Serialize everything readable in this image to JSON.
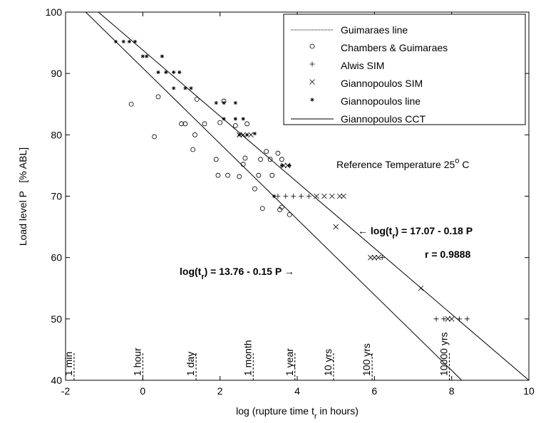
{
  "chart_data": {
    "type": "scatter",
    "xlabel": {
      "main": "log (rupture time t",
      "sub": "r",
      "tail": " in hours)"
    },
    "ylabel": "Load level P   [% ABL]",
    "xlim": [
      -2,
      10
    ],
    "xticks": [
      -2,
      0,
      2,
      4,
      6,
      8,
      10
    ],
    "ylim": [
      40,
      100
    ],
    "yticks": [
      40,
      50,
      60,
      70,
      80,
      90,
      100
    ],
    "legend_location": "upper right",
    "series": [
      {
        "name": "Guimaraes line",
        "marker": "line",
        "color": "#000000",
        "x": [
          -1.48,
          8.26
        ],
        "values": [
          100,
          40
        ]
      },
      {
        "name": "Chambers & Guimaraes",
        "marker": "circle",
        "color": "#000000",
        "x": [
          -0.3,
          0.3,
          0.4,
          1.0,
          1.1,
          1.3,
          1.35,
          1.4,
          1.6,
          1.9,
          1.95,
          2.0,
          2.1,
          2.2,
          2.4,
          2.5,
          2.6,
          2.65,
          2.7,
          2.9,
          3.0,
          3.05,
          3.1,
          3.2,
          3.3,
          3.35,
          3.5,
          3.6,
          3.55,
          3.6,
          3.8
        ],
        "values": [
          85,
          79.7,
          86.2,
          81.8,
          81.8,
          77.6,
          80,
          85.8,
          81.8,
          76,
          73.4,
          82,
          85.5,
          73.4,
          81.5,
          73.2,
          75.2,
          76.2,
          81.8,
          71.2,
          73.4,
          76,
          68,
          77.3,
          76,
          73.4,
          77,
          76,
          67.8,
          68.2,
          67
        ]
      },
      {
        "name": "Alwis SIM",
        "marker": "plus",
        "color": "#000000",
        "x": [
          3.5,
          3.7,
          3.9,
          4.1,
          4.3,
          6.2,
          7.6,
          7.8,
          8.2,
          8.4
        ],
        "values": [
          70,
          70,
          70,
          70,
          70,
          60,
          50,
          50,
          50,
          50
        ]
      },
      {
        "name": "Giannopoulos SIM",
        "marker": "x",
        "color": "#000000",
        "x": [
          2.5,
          2.6,
          2.8,
          3.65,
          3.75,
          4.5,
          4.7,
          4.9,
          5.1,
          5.2,
          5.0,
          5.9,
          6.0,
          6.1,
          7.2,
          7.9,
          8.0
        ],
        "values": [
          80,
          80,
          80,
          75,
          75,
          70,
          70,
          70,
          70,
          70,
          65,
          60,
          60,
          60,
          55,
          50,
          50
        ]
      },
      {
        "name": "Giannopoulos line",
        "marker": "star",
        "color": "#000000",
        "x": [
          -0.7,
          -0.5,
          -0.35,
          -0.2,
          0.0,
          0.1,
          0.5,
          0.4,
          0.6,
          0.8,
          0.95,
          0.8,
          1.1,
          1.25,
          1.9,
          2.1,
          2.4,
          2.1,
          2.4,
          2.6,
          2.5,
          2.7,
          2.9,
          3.6,
          3.8,
          3.4
        ],
        "values": [
          95.2,
          95.2,
          95.2,
          95.2,
          92.8,
          92.8,
          92.8,
          90.2,
          90.2,
          90.2,
          90.2,
          87.6,
          87.6,
          87.6,
          85.2,
          85.2,
          85.2,
          82.6,
          82.6,
          82.6,
          80,
          80,
          80.2,
          75,
          75,
          70
        ]
      },
      {
        "name": "Giannopoulos CCT",
        "marker": "line",
        "color": "#000000",
        "x": [
          -1.15,
          10
        ],
        "values": [
          100,
          40
        ]
      }
    ],
    "time_markers": [
      {
        "label": "1 min",
        "x": -1.78
      },
      {
        "label": "1 hour",
        "x": 0
      },
      {
        "label": "1 day",
        "x": 1.38
      },
      {
        "label": "1 month",
        "x": 2.86
      },
      {
        "label": "1 year",
        "x": 3.94
      },
      {
        "label": "10 yrs",
        "x": 4.94
      },
      {
        "label": "100 yrs",
        "x": 5.94
      },
      {
        "label": "10000 yrs",
        "x": 7.94
      }
    ],
    "annotations": {
      "reference": {
        "main": "Reference Temperature 25",
        "sup": "o",
        "tail": " C"
      },
      "cct_fit": {
        "main": "← log(t",
        "sub": "r",
        "tail": ") = 17.07 - 0.18 P"
      },
      "cct_r": "r = 0.9888",
      "guimaraes_fit": {
        "main": "log(t",
        "sub": "r",
        "tail": ") = 13.76 - 0.15 P →"
      }
    }
  }
}
